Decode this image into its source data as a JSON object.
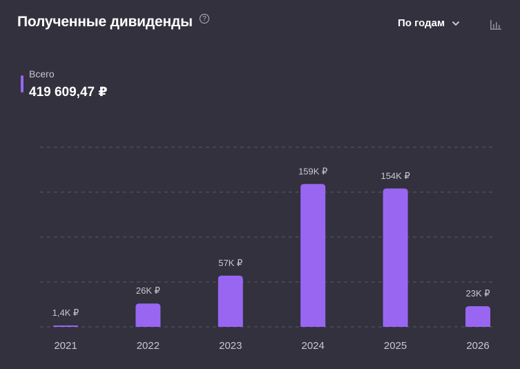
{
  "header": {
    "title": "Полученные дивиденды",
    "help_icon": "?",
    "period_label": "По годам"
  },
  "summary": {
    "label": "Всего",
    "value": "419 609,47 ₽"
  },
  "colors": {
    "background": "#32313d",
    "bar": "#9966f2",
    "grid": "#5a5968",
    "text_muted": "#c8c7d1"
  },
  "chart_data": {
    "type": "bar",
    "categories": [
      "2021",
      "2022",
      "2023",
      "2024",
      "2025",
      "2026"
    ],
    "values": [
      1400,
      26000,
      57000,
      159000,
      154000,
      23000
    ],
    "data_labels": [
      "1,4K ₽",
      "26K ₽",
      "57K ₽",
      "159K ₽",
      "154K ₽",
      "23K ₽"
    ],
    "ylim": [
      0,
      200000
    ],
    "grid": true,
    "title": "",
    "xlabel": "",
    "ylabel": ""
  }
}
